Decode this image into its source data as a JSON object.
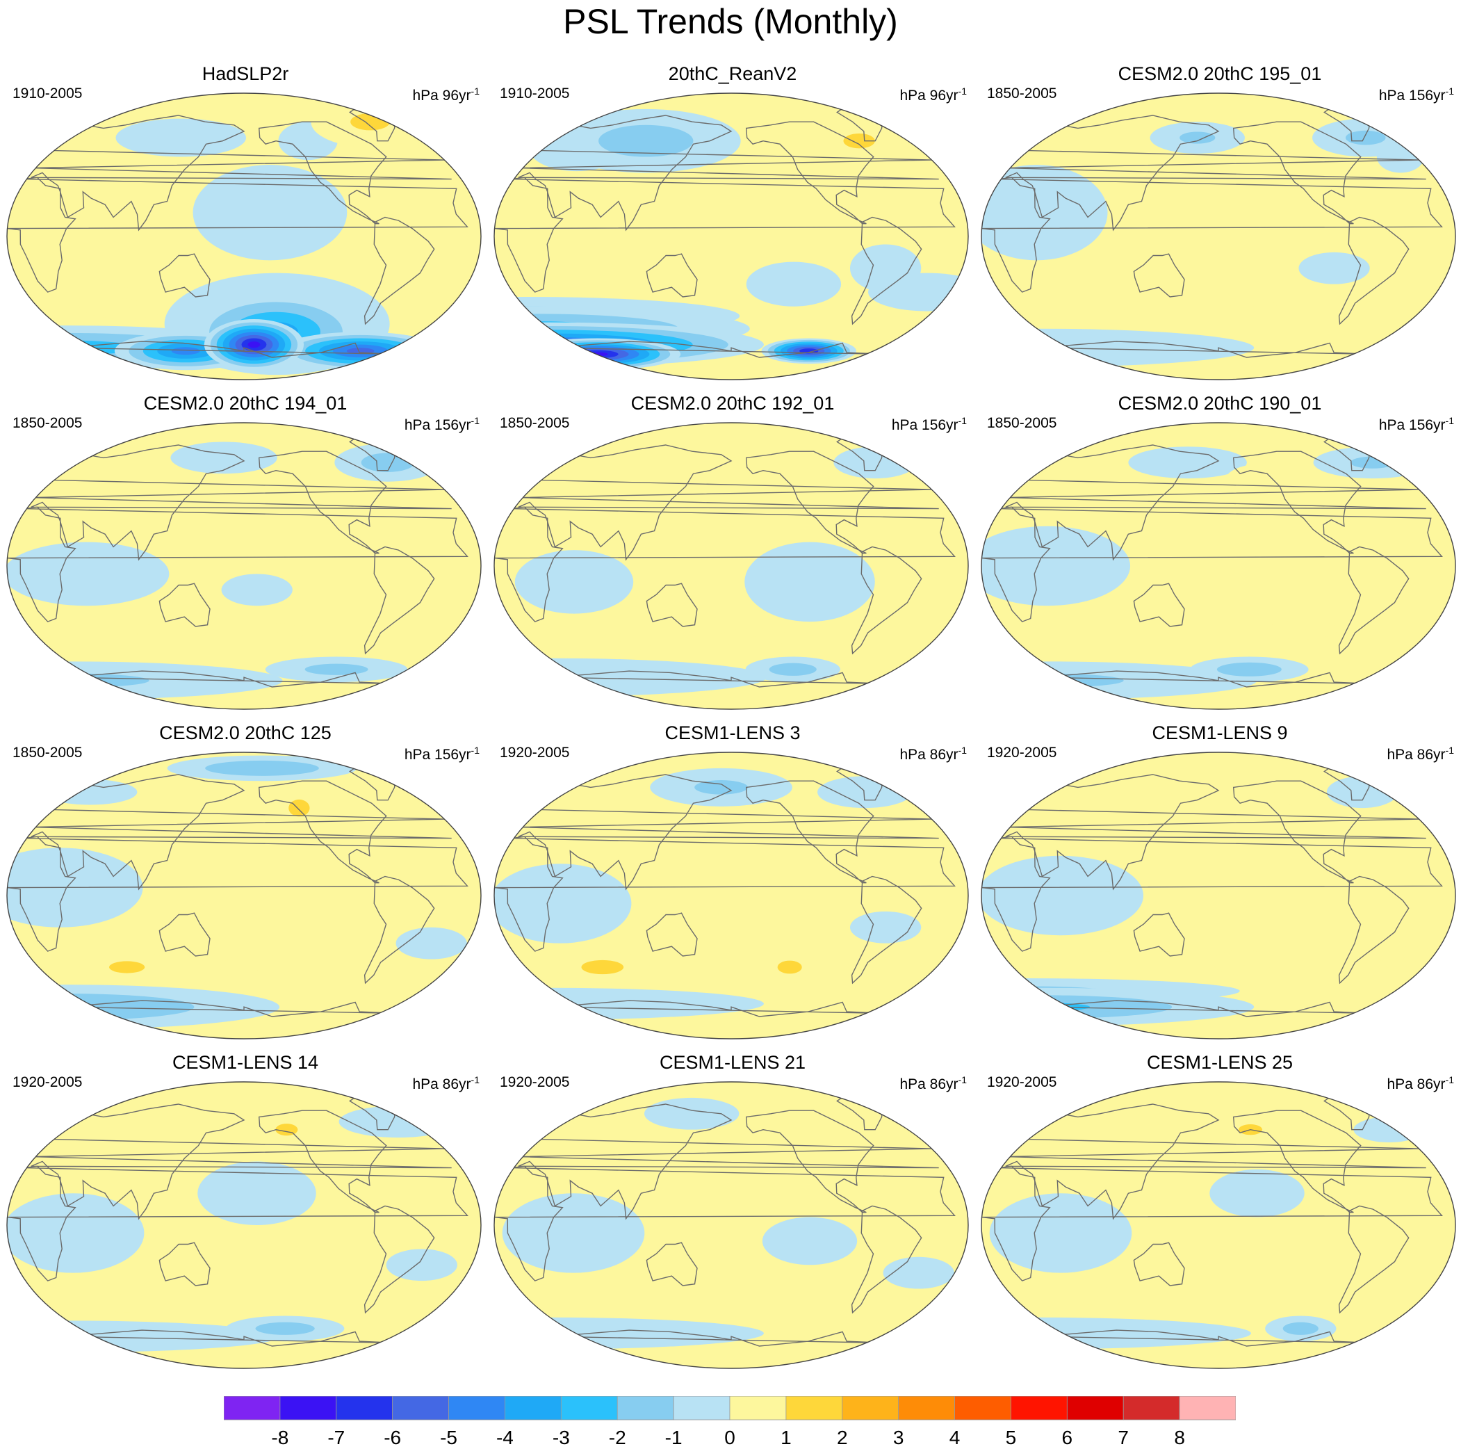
{
  "figure": {
    "title": "PSL Trends (Monthly)"
  },
  "chart_data": [
    {
      "type": "heatmap",
      "title": "HadSLP2r",
      "period": "1910-2005",
      "units": "hPa 96yr",
      "units_exp": "-1",
      "blobs": [
        {
          "lon": -170,
          "lat": -68,
          "rx": 42,
          "ry": 16,
          "v": -8
        },
        {
          "lon": -60,
          "lat": -72,
          "rx": 70,
          "ry": 12,
          "v": -6
        },
        {
          "lon": 120,
          "lat": -72,
          "rx": 60,
          "ry": 12,
          "v": -5
        },
        {
          "lon": -150,
          "lat": -60,
          "rx": 75,
          "ry": 25,
          "v": -4
        },
        {
          "lon": 0,
          "lat": -70,
          "rx": 180,
          "ry": 14,
          "v": -3
        },
        {
          "lon": -150,
          "lat": -55,
          "rx": 95,
          "ry": 32,
          "v": -2
        },
        {
          "lon": 80,
          "lat": -42,
          "rx": 40,
          "ry": 10,
          "v": 1.4
        },
        {
          "lon": -10,
          "lat": -45,
          "rx": 45,
          "ry": 10,
          "v": 1.1
        },
        {
          "lon": -50,
          "lat": 72,
          "rx": 50,
          "ry": 16,
          "v": 1.5
        },
        {
          "lon": -160,
          "lat": 15,
          "rx": 65,
          "ry": 30,
          "v": -0.6
        },
        {
          "lon": 120,
          "lat": 62,
          "rx": 55,
          "ry": 12,
          "v": -0.6
        },
        {
          "lon": -120,
          "lat": 60,
          "rx": 25,
          "ry": 12,
          "v": -0.6
        },
        {
          "lon": 30,
          "lat": 45,
          "rx": 30,
          "ry": 10,
          "v": -0.5
        }
      ]
    },
    {
      "type": "heatmap",
      "title": "20thC_ReanV2",
      "period": "1910-2005",
      "units": "hPa 96yr",
      "units_exp": "-1",
      "blobs": [
        {
          "lon": 40,
          "lat": -74,
          "rx": 70,
          "ry": 10,
          "v": -8
        },
        {
          "lon": -100,
          "lat": -72,
          "rx": 40,
          "ry": 8,
          "v": -7.5
        },
        {
          "lon": 0,
          "lat": -68,
          "rx": 180,
          "ry": 14,
          "v": -6
        },
        {
          "lon": 0,
          "lat": -58,
          "rx": 180,
          "ry": 14,
          "v": -3
        },
        {
          "lon": 0,
          "lat": -50,
          "rx": 180,
          "ry": 12,
          "v": -2
        },
        {
          "lon": 100,
          "lat": 60,
          "rx": 80,
          "ry": 20,
          "v": -2
        },
        {
          "lon": 40,
          "lat": 55,
          "rx": 40,
          "ry": 14,
          "v": -1.5
        },
        {
          "lon": -60,
          "lat": 60,
          "rx": 40,
          "ry": 14,
          "v": 1.5
        },
        {
          "lon": -30,
          "lat": 75,
          "rx": 60,
          "ry": 10,
          "v": 1.2
        },
        {
          "lon": -130,
          "lat": -30,
          "rx": 40,
          "ry": 14,
          "v": -0.6
        },
        {
          "lon": -20,
          "lat": -35,
          "rx": 50,
          "ry": 12,
          "v": -0.6
        },
        {
          "lon": 80,
          "lat": -40,
          "rx": 12,
          "ry": 6,
          "v": 1.2
        },
        {
          "lon": -60,
          "lat": -20,
          "rx": 30,
          "ry": 15,
          "v": -0.6
        }
      ]
    },
    {
      "type": "heatmap",
      "title": "CESM2.0 20thC 195_01",
      "period": "1850-2005",
      "units": "hPa 156yr",
      "units_exp": "-1",
      "blobs": [
        {
          "lon": 0,
          "lat": -70,
          "rx": 180,
          "ry": 12,
          "v": -1.3
        },
        {
          "lon": -40,
          "lat": 62,
          "rx": 45,
          "ry": 12,
          "v": -1.6
        },
        {
          "lon": 160,
          "lat": 62,
          "rx": 40,
          "ry": 10,
          "v": -1.6
        },
        {
          "lon": 40,
          "lat": 15,
          "rx": 60,
          "ry": 30,
          "v": -0.6
        },
        {
          "lon": -90,
          "lat": -20,
          "rx": 30,
          "ry": 10,
          "v": -0.6
        },
        {
          "lon": -150,
          "lat": -45,
          "rx": 20,
          "ry": 6,
          "v": 1.2
        },
        {
          "lon": 100,
          "lat": -45,
          "rx": 15,
          "ry": 6,
          "v": 1.2
        },
        {
          "lon": -20,
          "lat": 50,
          "rx": 20,
          "ry": 10,
          "v": -0.6
        }
      ]
    },
    {
      "type": "heatmap",
      "title": "CESM2.0 20thC 194_01",
      "period": "1850-2005",
      "units": "hPa 156yr",
      "units_exp": "-1",
      "blobs": [
        {
          "lon": 0,
          "lat": -72,
          "rx": 180,
          "ry": 12,
          "v": -1.6
        },
        {
          "lon": -90,
          "lat": -65,
          "rx": 60,
          "ry": 8,
          "v": -1.8
        },
        {
          "lon": -40,
          "lat": 65,
          "rx": 45,
          "ry": 12,
          "v": -2
        },
        {
          "lon": 160,
          "lat": 68,
          "rx": 45,
          "ry": 10,
          "v": -1.4
        },
        {
          "lon": -110,
          "lat": 55,
          "rx": 40,
          "ry": 14,
          "v": 1.4
        },
        {
          "lon": -50,
          "lat": 50,
          "rx": 25,
          "ry": 10,
          "v": 1.3
        },
        {
          "lon": 60,
          "lat": -5,
          "rx": 70,
          "ry": 20,
          "v": -0.6
        },
        {
          "lon": -170,
          "lat": -15,
          "rx": 30,
          "ry": 10,
          "v": -0.6
        },
        {
          "lon": 110,
          "lat": -42,
          "rx": 20,
          "ry": 6,
          "v": 1.1
        },
        {
          "lon": -150,
          "lat": -42,
          "rx": 20,
          "ry": 6,
          "v": 1.1
        }
      ]
    },
    {
      "type": "heatmap",
      "title": "CESM2.0 20thC 192_01",
      "period": "1850-2005",
      "units": "hPa 156yr",
      "units_exp": "-1",
      "blobs": [
        {
          "lon": 0,
          "lat": -70,
          "rx": 180,
          "ry": 12,
          "v": -1.4
        },
        {
          "lon": -120,
          "lat": -65,
          "rx": 40,
          "ry": 8,
          "v": -2
        },
        {
          "lon": -120,
          "lat": -10,
          "rx": 55,
          "ry": 25,
          "v": -0.6
        },
        {
          "lon": 60,
          "lat": -10,
          "rx": 50,
          "ry": 20,
          "v": -0.6
        },
        {
          "lon": -40,
          "lat": 65,
          "rx": 35,
          "ry": 10,
          "v": -1.4
        },
        {
          "lon": -110,
          "lat": 60,
          "rx": 25,
          "ry": 8,
          "v": 1.2
        },
        {
          "lon": 80,
          "lat": -45,
          "rx": 35,
          "ry": 10,
          "v": 1.4
        },
        {
          "lon": -160,
          "lat": -45,
          "rx": 30,
          "ry": 6,
          "v": 1.1
        }
      ]
    },
    {
      "type": "heatmap",
      "title": "CESM2.0 20thC 190_01",
      "period": "1850-2005",
      "units": "hPa 156yr",
      "units_exp": "-1",
      "blobs": [
        {
          "lon": 0,
          "lat": -72,
          "rx": 180,
          "ry": 12,
          "v": -1.6
        },
        {
          "lon": -150,
          "lat": -65,
          "rx": 50,
          "ry": 8,
          "v": -2.2
        },
        {
          "lon": -30,
          "lat": 65,
          "rx": 50,
          "ry": 10,
          "v": -1.6
        },
        {
          "lon": 150,
          "lat": 65,
          "rx": 50,
          "ry": 10,
          "v": -1.4
        },
        {
          "lon": -130,
          "lat": 55,
          "rx": 40,
          "ry": 10,
          "v": 1.4
        },
        {
          "lon": -60,
          "lat": 45,
          "rx": 20,
          "ry": 8,
          "v": 1.2
        },
        {
          "lon": 50,
          "lat": 0,
          "rx": 70,
          "ry": 25,
          "v": -0.6
        },
        {
          "lon": -110,
          "lat": -40,
          "rx": 30,
          "ry": 6,
          "v": 1.1
        }
      ]
    },
    {
      "type": "heatmap",
      "title": "CESM2.0 20thC 125",
      "period": "1850-2005",
      "units": "hPa 156yr",
      "units_exp": "-1",
      "blobs": [
        {
          "lon": 0,
          "lat": -70,
          "rx": 180,
          "ry": 14,
          "v": -2.5
        },
        {
          "lon": -160,
          "lat": 80,
          "rx": 80,
          "ry": 8,
          "v": -2.5
        },
        {
          "lon": -130,
          "lat": 55,
          "rx": 20,
          "ry": 12,
          "v": 1.8
        },
        {
          "lon": 80,
          "lat": -45,
          "rx": 40,
          "ry": 10,
          "v": 1.6
        },
        {
          "lon": -170,
          "lat": -45,
          "rx": 30,
          "ry": 8,
          "v": 1.3
        },
        {
          "lon": 40,
          "lat": 5,
          "rx": 70,
          "ry": 25,
          "v": -0.6
        },
        {
          "lon": -30,
          "lat": -30,
          "rx": 30,
          "ry": 10,
          "v": -0.6
        },
        {
          "lon": 30,
          "lat": 65,
          "rx": 40,
          "ry": 8,
          "v": -0.6
        }
      ]
    },
    {
      "type": "heatmap",
      "title": "CESM1-LENS 3",
      "period": "1920-2005",
      "units": "hPa 86yr",
      "units_exp": "-1",
      "blobs": [
        {
          "lon": 0,
          "lat": -68,
          "rx": 180,
          "ry": 10,
          "v": -1.3
        },
        {
          "lon": 170,
          "lat": 68,
          "rx": 60,
          "ry": 12,
          "v": -1.6
        },
        {
          "lon": -50,
          "lat": 65,
          "rx": 40,
          "ry": 10,
          "v": -1.5
        },
        {
          "lon": 70,
          "lat": -45,
          "rx": 40,
          "ry": 10,
          "v": 1.8
        },
        {
          "lon": -130,
          "lat": -45,
          "rx": 25,
          "ry": 10,
          "v": 1.7
        },
        {
          "lon": -150,
          "lat": 50,
          "rx": 20,
          "ry": 8,
          "v": 1.3
        },
        {
          "lon": 50,
          "lat": -5,
          "rx": 60,
          "ry": 25,
          "v": -0.6
        },
        {
          "lon": -60,
          "lat": -20,
          "rx": 30,
          "ry": 10,
          "v": -0.6
        }
      ]
    },
    {
      "type": "heatmap",
      "title": "CESM1-LENS 9",
      "period": "1920-2005",
      "units": "hPa 86yr",
      "units_exp": "-1",
      "blobs": [
        {
          "lon": 0,
          "lat": -70,
          "rx": 180,
          "ry": 12,
          "v": -2.6
        },
        {
          "lon": 0,
          "lat": -60,
          "rx": 180,
          "ry": 8,
          "v": -1.6
        },
        {
          "lon": -120,
          "lat": 55,
          "rx": 35,
          "ry": 10,
          "v": 1.3
        },
        {
          "lon": 100,
          "lat": 65,
          "rx": 30,
          "ry": 10,
          "v": 1.2
        },
        {
          "lon": 80,
          "lat": -45,
          "rx": 30,
          "ry": 10,
          "v": 1.3
        },
        {
          "lon": -160,
          "lat": -42,
          "rx": 25,
          "ry": 8,
          "v": 1.3
        },
        {
          "lon": -20,
          "lat": -40,
          "rx": 25,
          "ry": 8,
          "v": 1.3
        },
        {
          "lon": 60,
          "lat": 0,
          "rx": 70,
          "ry": 25,
          "v": -0.6
        },
        {
          "lon": -40,
          "lat": 65,
          "rx": 30,
          "ry": 10,
          "v": -0.6
        }
      ]
    },
    {
      "type": "heatmap",
      "title": "CESM1-LENS 14",
      "period": "1920-2005",
      "units": "hPa 86yr",
      "units_exp": "-1",
      "blobs": [
        {
          "lon": 0,
          "lat": -70,
          "rx": 180,
          "ry": 10,
          "v": -1.4
        },
        {
          "lon": -140,
          "lat": -65,
          "rx": 50,
          "ry": 8,
          "v": -2
        },
        {
          "lon": -140,
          "lat": 60,
          "rx": 25,
          "ry": 10,
          "v": 1.6
        },
        {
          "lon": 80,
          "lat": -45,
          "rx": 30,
          "ry": 10,
          "v": 1.3
        },
        {
          "lon": -170,
          "lat": 20,
          "rx": 50,
          "ry": 20,
          "v": -0.6
        },
        {
          "lon": 50,
          "lat": -5,
          "rx": 60,
          "ry": 25,
          "v": -0.6
        },
        {
          "lon": -40,
          "lat": -25,
          "rx": 30,
          "ry": 10,
          "v": -0.6
        },
        {
          "lon": -30,
          "lat": 65,
          "rx": 50,
          "ry": 10,
          "v": -0.6
        }
      ]
    },
    {
      "type": "heatmap",
      "title": "CESM1-LENS 21",
      "period": "1920-2005",
      "units": "hPa 86yr",
      "units_exp": "-1",
      "blobs": [
        {
          "lon": 0,
          "lat": -68,
          "rx": 180,
          "ry": 10,
          "v": -1.2
        },
        {
          "lon": -150,
          "lat": 60,
          "rx": 20,
          "ry": 8,
          "v": 1.2
        },
        {
          "lon": 60,
          "lat": -5,
          "rx": 60,
          "ry": 25,
          "v": -0.6
        },
        {
          "lon": -120,
          "lat": -10,
          "rx": 40,
          "ry": 15,
          "v": -0.6
        },
        {
          "lon": -30,
          "lat": -30,
          "rx": 30,
          "ry": 10,
          "v": -0.6
        },
        {
          "lon": 140,
          "lat": 70,
          "rx": 40,
          "ry": 10,
          "v": -0.6
        }
      ]
    },
    {
      "type": "heatmap",
      "title": "CESM1-LENS 25",
      "period": "1920-2005",
      "units": "hPa 86yr",
      "units_exp": "-1",
      "blobs": [
        {
          "lon": 0,
          "lat": -68,
          "rx": 180,
          "ry": 10,
          "v": -1.3
        },
        {
          "lon": -100,
          "lat": -65,
          "rx": 30,
          "ry": 8,
          "v": -2
        },
        {
          "lon": -150,
          "lat": 60,
          "rx": 30,
          "ry": 10,
          "v": 1.5
        },
        {
          "lon": 60,
          "lat": -5,
          "rx": 60,
          "ry": 25,
          "v": -0.6
        },
        {
          "lon": -150,
          "lat": 20,
          "rx": 40,
          "ry": 15,
          "v": -0.6
        },
        {
          "lon": 80,
          "lat": -45,
          "rx": 20,
          "ry": 6,
          "v": 1.2
        },
        {
          "lon": -20,
          "lat": 60,
          "rx": 30,
          "ry": 8,
          "v": -0.6
        }
      ]
    }
  ],
  "colorbar": {
    "colors": [
      "#7f24f2",
      "#3b12f4",
      "#2433ed",
      "#4468e4",
      "#2f87f4",
      "#1fa9f6",
      "#2bc1fb",
      "#87cdf0",
      "#b8e2f4",
      "#fdf79d",
      "#fed73a",
      "#feb31a",
      "#fe8c07",
      "#fe5d00",
      "#ff1400",
      "#df0000",
      "#d42b2b",
      "#ffb3b4"
    ],
    "labels": [
      "-8",
      "-7",
      "-6",
      "-5",
      "-4",
      "-3",
      "-2",
      "-1",
      "0",
      "1",
      "2",
      "3",
      "4",
      "5",
      "6",
      "7",
      "8"
    ],
    "levels": [
      -8,
      -7,
      -6,
      -5,
      -4,
      -3,
      -2,
      -1,
      0,
      1,
      2,
      3,
      4,
      5,
      6,
      7,
      8
    ]
  }
}
